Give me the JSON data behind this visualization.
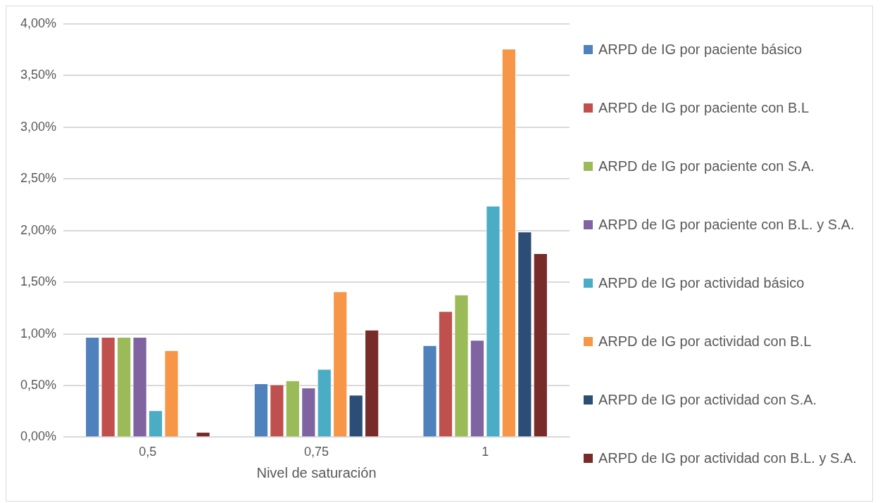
{
  "chart_data": {
    "type": "bar",
    "xlabel": "Nivel de saturación",
    "categories": [
      "0,5",
      "0,75",
      "1"
    ],
    "series": [
      {
        "name": "ARPD de IG por paciente básico",
        "color": "#4f81bd",
        "values": [
          0.97,
          0.52,
          0.89
        ]
      },
      {
        "name": "ARPD de IG por paciente con B.L",
        "color": "#c0504d",
        "values": [
          0.97,
          0.51,
          1.22
        ]
      },
      {
        "name": "ARPD de IG por paciente con S.A.",
        "color": "#9bbb59",
        "values": [
          0.97,
          0.55,
          1.38
        ]
      },
      {
        "name": "ARPD de IG por paciente con B.L. y S.A.",
        "color": "#8064a2",
        "values": [
          0.97,
          0.48,
          0.94
        ]
      },
      {
        "name": "ARPD de IG por actividad básico",
        "color": "#4bacc6",
        "values": [
          0.26,
          0.66,
          2.24
        ]
      },
      {
        "name": "ARPD de IG por actividad con B.L",
        "color": "#f79646",
        "values": [
          0.84,
          1.41,
          3.76
        ]
      },
      {
        "name": "ARPD de IG por actividad con S.A.",
        "color": "#2c4d75",
        "values": [
          0,
          0.41,
          1.99
        ]
      },
      {
        "name": "ARPD de IG por actividad con B.L. y S.A.",
        "color": "#772c2a",
        "values": [
          0.05,
          1.04,
          1.78
        ]
      }
    ],
    "ylim": [
      0,
      4
    ],
    "yticks": [
      {
        "value": 0,
        "label": "0,00%"
      },
      {
        "value": 0.5,
        "label": "0,50%"
      },
      {
        "value": 1,
        "label": "1,00%"
      },
      {
        "value": 1.5,
        "label": "1,50%"
      },
      {
        "value": 2,
        "label": "2,00%"
      },
      {
        "value": 2.5,
        "label": "2,50%"
      },
      {
        "value": 3,
        "label": "3,00%"
      },
      {
        "value": 3.5,
        "label": "3,50%"
      },
      {
        "value": 4,
        "label": "4,00%"
      }
    ],
    "grid": "y",
    "legend": "right"
  }
}
